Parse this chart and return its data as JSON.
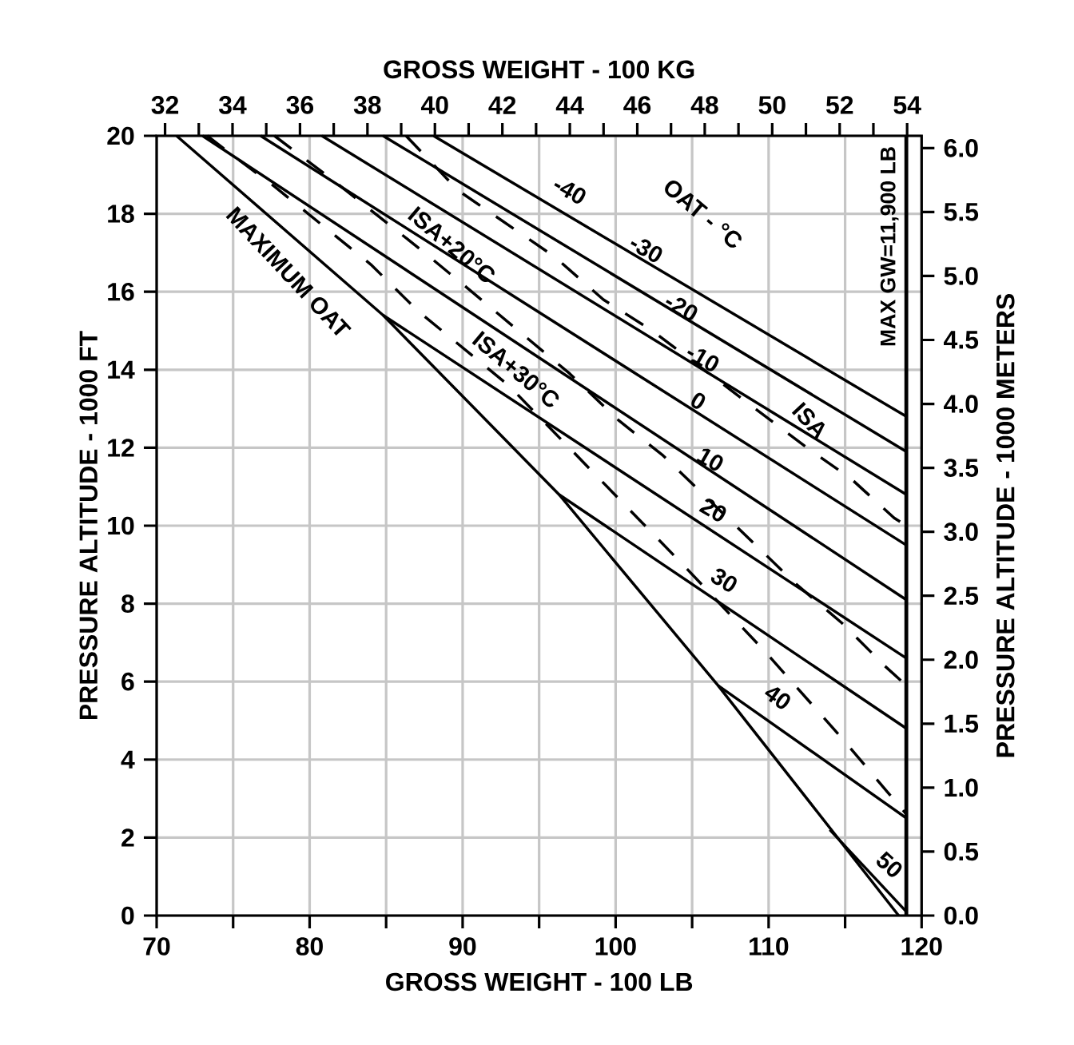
{
  "chart_data": {
    "type": "line",
    "xlabel": "GROSS WEIGHT - 100 LB",
    "x2label": "GROSS WEIGHT - 100 KG",
    "ylabel": "PRESSURE ALTITUDE - 1000 FT",
    "y2label": "PRESSURE ALTITUDE - 1000 METERS",
    "xlim": [
      70,
      120
    ],
    "ylim": [
      0,
      20
    ],
    "x2lim": [
      31.75,
      54.43
    ],
    "y2lim": [
      0,
      6.096
    ],
    "xticks": [
      70,
      {
        "value": 75,
        "label": null
      },
      80,
      {
        "value": 85,
        "label": null
      },
      90,
      {
        "value": 95,
        "label": null
      },
      100,
      {
        "value": 105,
        "label": null
      },
      110,
      {
        "value": 115,
        "label": null
      },
      120
    ],
    "yticks": [
      0,
      2,
      4,
      6,
      8,
      10,
      12,
      14,
      16,
      18,
      20
    ],
    "x2ticks": [
      32,
      {
        "value": 33,
        "label": null
      },
      34,
      {
        "value": 35,
        "label": null
      },
      36,
      {
        "value": 37,
        "label": null
      },
      38,
      {
        "value": 39,
        "label": null
      },
      40,
      {
        "value": 41,
        "label": null
      },
      42,
      {
        "value": 43,
        "label": null
      },
      44,
      {
        "value": 45,
        "label": null
      },
      46,
      {
        "value": 47,
        "label": null
      },
      48,
      {
        "value": 49,
        "label": null
      },
      50,
      {
        "value": 51,
        "label": null
      },
      52,
      {
        "value": 53,
        "label": null
      },
      54
    ],
    "y2ticks": [
      {
        "value": 0,
        "label": "0.0"
      },
      {
        "value": 0.5,
        "label": "0.5"
      },
      {
        "value": 1,
        "label": "1.0"
      },
      {
        "value": 1.5,
        "label": "1.5"
      },
      {
        "value": 2,
        "label": "2.0"
      },
      {
        "value": 2.5,
        "label": "2.5"
      },
      {
        "value": 3,
        "label": "3.0"
      },
      {
        "value": 3.5,
        "label": "3.5"
      },
      {
        "value": 4,
        "label": "4.0"
      },
      {
        "value": 4.5,
        "label": "4.5"
      },
      {
        "value": 5,
        "label": "5.0"
      },
      {
        "value": 5.5,
        "label": "5.5"
      },
      {
        "value": 6,
        "label": "6.0"
      }
    ],
    "grid": true,
    "line_style": "solid",
    "series": [
      {
        "color": "#000000",
        "x": [
          88.1,
          119
        ],
        "values": [
          20,
          12.8
        ]
      },
      {
        "color": "#000000",
        "x": [
          84.8,
          119
        ],
        "values": [
          20,
          11.9
        ]
      },
      {
        "color": "#000000",
        "x": [
          80.8,
          119
        ],
        "values": [
          20,
          10.8
        ]
      },
      {
        "color": "#000000",
        "x": [
          76.8,
          119
        ],
        "values": [
          20,
          9.5
        ]
      },
      {
        "color": "#000000",
        "x": [
          73.0,
          119
        ],
        "values": [
          20,
          8.1
        ]
      },
      {
        "color": "#000000",
        "x": [
          84.8,
          119
        ],
        "values": [
          15.4,
          6.6
        ]
      },
      {
        "color": "#000000",
        "x": [
          96.3,
          119
        ],
        "values": [
          10.8,
          4.8
        ]
      },
      {
        "color": "#000000",
        "x": [
          106.7,
          119
        ],
        "values": [
          5.9,
          2.5
        ]
      },
      {
        "color": "#000000",
        "x": [
          114.0,
          119
        ],
        "values": [
          2.2,
          0.1
        ]
      },
      {
        "color": "#000000",
        "x": [
          71.3,
          84.8,
          96.3,
          106.7,
          118.5
        ],
        "values": [
          20,
          15.4,
          10.8,
          5.9,
          0
        ]
      },
      {
        "color": "#000000",
        "line_style": "dashed",
        "x": [
          86.3,
          89.7,
          96.0,
          99.2,
          102.4,
          108.8,
          112.5,
          115.4,
          118.2,
          119
        ],
        "values": [
          20,
          18.6,
          16.9,
          15.8,
          15.0,
          13.1,
          12.0,
          11.2,
          10.2,
          10.0
        ]
      },
      {
        "color": "#000000",
        "line_style": "dashed",
        "x": [
          77.7,
          81.4,
          87.2,
          90.3,
          97.0,
          100.2,
          103.1,
          111.8,
          114.8,
          117.6,
          119
        ],
        "values": [
          20,
          18.9,
          17.1,
          16.1,
          13.9,
          12.7,
          11.8,
          8.5,
          7.5,
          6.4,
          5.9
        ]
      },
      {
        "color": "#000000",
        "line_style": "dashed",
        "x": [
          73.3,
          74.3,
          77.7,
          84.0,
          87.1,
          93.0,
          104.4,
          109.7,
          114.9,
          117.7,
          119
        ],
        "values": [
          20,
          19.7,
          18.7,
          16.7,
          15.5,
          13.6,
          9.0,
          6.8,
          4.5,
          3.2,
          2.6
        ]
      }
    ],
    "ref_lines": [
      {
        "axis": "x",
        "value": 119,
        "label": "MAX GW=11,900 LB",
        "color": "#000000"
      }
    ],
    "annotations": [
      "MAXIMUM OAT",
      "ISA+20°C",
      "ISA+30°C",
      "ISA",
      "OAT - °C",
      "-40",
      "-30",
      "-20",
      "-10",
      "0",
      "10",
      "20",
      "30",
      "40",
      "50"
    ]
  }
}
